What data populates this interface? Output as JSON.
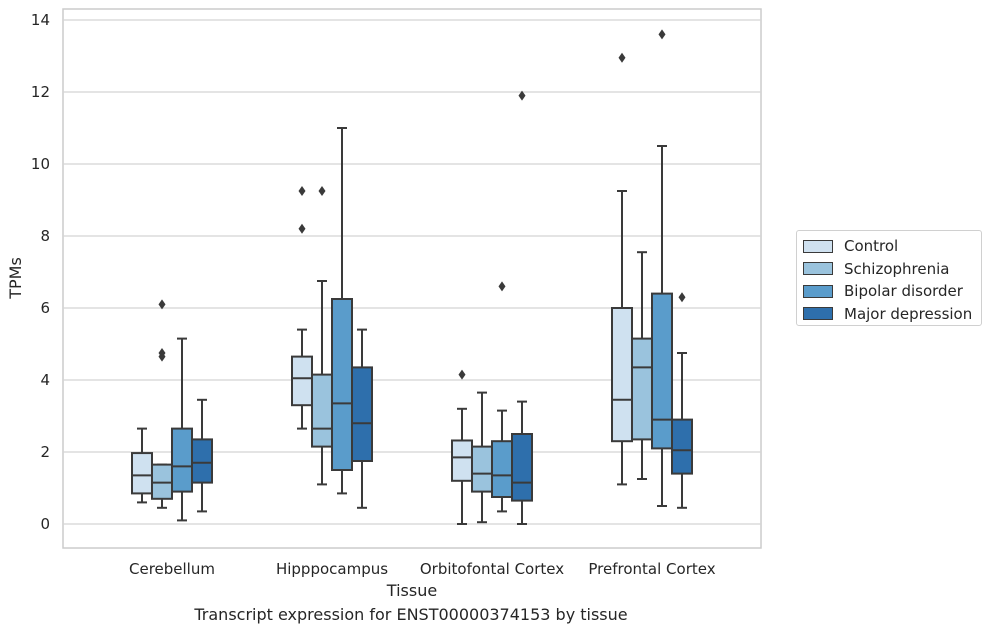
{
  "chart_data": {
    "type": "box",
    "xlabel": "Tissue",
    "ylabel": "TPMs",
    "ylim": [
      -0.65,
      14.25
    ],
    "yticks": [
      "0",
      "2",
      "4",
      "6",
      "8",
      "10",
      "12",
      "14"
    ],
    "grid": "horizontal",
    "legend_position": "right",
    "categories": [
      "Cerebellum",
      "Hipppocampus",
      "Orbitofontal Cortex",
      "Prefrontal Cortex"
    ],
    "series": [
      {
        "name": "Control",
        "color": "#cfe1f0",
        "boxes": [
          {
            "whislo": 0.6,
            "q1": 0.85,
            "med": 1.35,
            "q3": 1.97,
            "whishi": 2.65,
            "fliers": []
          },
          {
            "whislo": 2.65,
            "q1": 3.3,
            "med": 4.05,
            "q3": 4.65,
            "whishi": 5.4,
            "fliers": [
              8.2,
              9.25
            ]
          },
          {
            "whislo": 0.0,
            "q1": 1.2,
            "med": 1.85,
            "q3": 2.32,
            "whishi": 3.2,
            "fliers": [
              4.15
            ]
          },
          {
            "whislo": 1.1,
            "q1": 2.3,
            "med": 3.45,
            "q3": 6.0,
            "whishi": 9.25,
            "fliers": [
              12.95
            ]
          }
        ]
      },
      {
        "name": "Schizophrenia",
        "color": "#9ac3dd",
        "boxes": [
          {
            "whislo": 0.45,
            "q1": 0.7,
            "med": 1.15,
            "q3": 1.65,
            "whishi": 1.65,
            "fliers": [
              4.65,
              4.75,
              6.1
            ]
          },
          {
            "whislo": 1.1,
            "q1": 2.15,
            "med": 2.65,
            "q3": 4.15,
            "whishi": 6.75,
            "fliers": [
              9.25
            ]
          },
          {
            "whislo": 0.05,
            "q1": 0.9,
            "med": 1.4,
            "q3": 2.15,
            "whishi": 3.65,
            "fliers": []
          },
          {
            "whislo": 1.25,
            "q1": 2.35,
            "med": 4.35,
            "q3": 5.15,
            "whishi": 7.55,
            "fliers": []
          }
        ]
      },
      {
        "name": "Bipolar disorder",
        "color": "#5a9ccb",
        "boxes": [
          {
            "whislo": 0.1,
            "q1": 0.9,
            "med": 1.6,
            "q3": 2.65,
            "whishi": 5.15,
            "fliers": []
          },
          {
            "whislo": 0.85,
            "q1": 1.5,
            "med": 3.35,
            "q3": 6.25,
            "whishi": 11.0,
            "fliers": []
          },
          {
            "whislo": 0.35,
            "q1": 0.75,
            "med": 1.35,
            "q3": 2.3,
            "whishi": 3.15,
            "fliers": [
              6.6
            ]
          },
          {
            "whislo": 0.5,
            "q1": 2.1,
            "med": 2.9,
            "q3": 6.4,
            "whishi": 10.5,
            "fliers": [
              13.6
            ]
          }
        ]
      },
      {
        "name": "Major depression",
        "color": "#2e6fac",
        "boxes": [
          {
            "whislo": 0.35,
            "q1": 1.15,
            "med": 1.7,
            "q3": 2.35,
            "whishi": 3.45,
            "fliers": []
          },
          {
            "whislo": 0.45,
            "q1": 1.75,
            "med": 2.8,
            "q3": 4.35,
            "whishi": 5.4,
            "fliers": []
          },
          {
            "whislo": 0.0,
            "q1": 0.65,
            "med": 1.15,
            "q3": 2.5,
            "whishi": 3.4,
            "fliers": [
              11.9
            ]
          },
          {
            "whislo": 0.45,
            "q1": 1.4,
            "med": 2.05,
            "q3": 2.9,
            "whishi": 4.75,
            "fliers": [
              6.3
            ]
          }
        ]
      }
    ]
  },
  "caption": "Transcript expression for ENST00000374153 by tissue"
}
